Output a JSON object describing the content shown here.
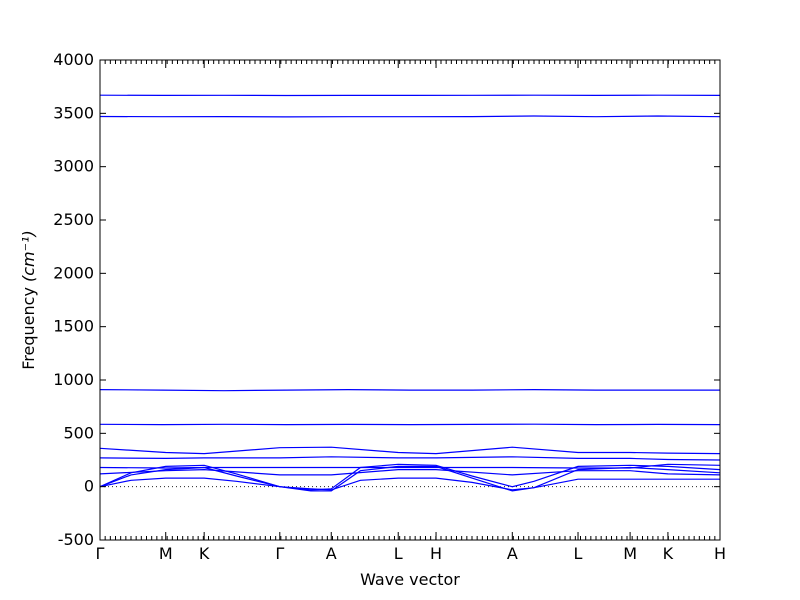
{
  "chart_data": {
    "type": "line",
    "xlabel": "Wave vector",
    "ylabel": "Frequency",
    "ylabel_unit": "(cm⁻¹)",
    "ylim": [
      -500,
      4000
    ],
    "yticks": [
      -500,
      0,
      500,
      1000,
      1500,
      2000,
      2500,
      3000,
      3500,
      4000
    ],
    "xlim": [
      0,
      1
    ],
    "xticks": [
      {
        "label": "Γ",
        "x": 0.0
      },
      {
        "label": "M",
        "x": 0.106
      },
      {
        "label": "K",
        "x": 0.168
      },
      {
        "label": "Γ",
        "x": 0.29
      },
      {
        "label": "A",
        "x": 0.373
      },
      {
        "label": "L",
        "x": 0.481
      },
      {
        "label": "H",
        "x": 0.542
      },
      {
        "label": "A",
        "x": 0.665
      },
      {
        "label": "L",
        "x": 0.771
      },
      {
        "label": "M",
        "x": 0.855
      },
      {
        "label": "K",
        "x": 0.916
      },
      {
        "label": "H",
        "x": 1.0
      }
    ],
    "zero_line": 0,
    "series": [
      {
        "x": [
          0,
          0.1,
          0.2,
          0.3,
          0.4,
          0.5,
          0.6,
          0.7,
          0.8,
          0.9,
          1.0
        ],
        "y": [
          3670,
          3668,
          3669,
          3667,
          3668,
          3668,
          3669,
          3670,
          3668,
          3670,
          3668
        ]
      },
      {
        "x": [
          0,
          0.1,
          0.2,
          0.3,
          0.4,
          0.5,
          0.6,
          0.7,
          0.8,
          0.9,
          1.0
        ],
        "y": [
          3470,
          3468,
          3469,
          3467,
          3468,
          3468,
          3469,
          3475,
          3468,
          3475,
          3468
        ]
      },
      {
        "x": [
          0,
          0.1,
          0.2,
          0.3,
          0.4,
          0.5,
          0.6,
          0.7,
          0.8,
          0.9,
          1.0
        ],
        "y": [
          910,
          905,
          900,
          905,
          910,
          905,
          905,
          910,
          905,
          905,
          905
        ]
      },
      {
        "x": [
          0,
          0.1,
          0.2,
          0.3,
          0.4,
          0.5,
          0.6,
          0.7,
          0.8,
          0.9,
          1.0
        ],
        "y": [
          585,
          582,
          585,
          582,
          584,
          582,
          584,
          586,
          582,
          584,
          582
        ]
      },
      {
        "x": [
          0,
          0.106,
          0.168,
          0.29,
          0.373,
          0.481,
          0.542,
          0.665,
          0.771,
          0.855,
          0.916,
          1.0
        ],
        "y": [
          360,
          320,
          310,
          365,
          370,
          320,
          310,
          370,
          320,
          320,
          315,
          310
        ]
      },
      {
        "x": [
          0,
          0.106,
          0.168,
          0.29,
          0.373,
          0.481,
          0.542,
          0.665,
          0.771,
          0.855,
          0.916,
          1.0
        ],
        "y": [
          270,
          265,
          270,
          270,
          280,
          270,
          270,
          280,
          265,
          265,
          255,
          250
        ]
      },
      {
        "x": [
          0,
          0.106,
          0.168,
          0.29,
          0.373,
          0.481,
          0.542,
          0.665,
          0.771,
          0.855,
          0.916,
          1.0
        ],
        "y": [
          180,
          175,
          180,
          180,
          180,
          180,
          180,
          180,
          175,
          175,
          210,
          200
        ]
      },
      {
        "x": [
          0,
          0.05,
          0.106,
          0.168,
          0.22,
          0.29,
          0.34,
          0.373,
          0.42,
          0.481,
          0.542,
          0.6,
          0.665,
          0.7,
          0.771,
          0.855,
          0.916,
          1.0
        ],
        "y": [
          0,
          130,
          190,
          200,
          120,
          0,
          -30,
          -20,
          180,
          210,
          200,
          100,
          0,
          50,
          190,
          200,
          190,
          160
        ]
      },
      {
        "x": [
          0,
          0.05,
          0.106,
          0.168,
          0.22,
          0.29,
          0.34,
          0.373,
          0.42,
          0.481,
          0.542,
          0.6,
          0.665,
          0.7,
          0.771,
          0.855,
          0.916,
          1.0
        ],
        "y": [
          0,
          110,
          160,
          180,
          100,
          0,
          -40,
          -40,
          150,
          190,
          190,
          80,
          -40,
          -10,
          160,
          180,
          160,
          130
        ]
      },
      {
        "x": [
          0,
          0.106,
          0.168,
          0.29,
          0.373,
          0.481,
          0.542,
          0.665,
          0.771,
          0.855,
          0.916,
          1.0
        ],
        "y": [
          120,
          150,
          160,
          110,
          110,
          160,
          160,
          110,
          150,
          150,
          120,
          110
        ]
      },
      {
        "x": [
          0,
          0.05,
          0.106,
          0.168,
          0.22,
          0.29,
          0.34,
          0.373,
          0.42,
          0.481,
          0.542,
          0.6,
          0.665,
          0.7,
          0.771,
          0.855,
          0.916,
          1.0
        ],
        "y": [
          0,
          60,
          80,
          80,
          50,
          0,
          -20,
          -30,
          60,
          80,
          80,
          40,
          -30,
          -10,
          70,
          70,
          70,
          70
        ]
      }
    ]
  }
}
